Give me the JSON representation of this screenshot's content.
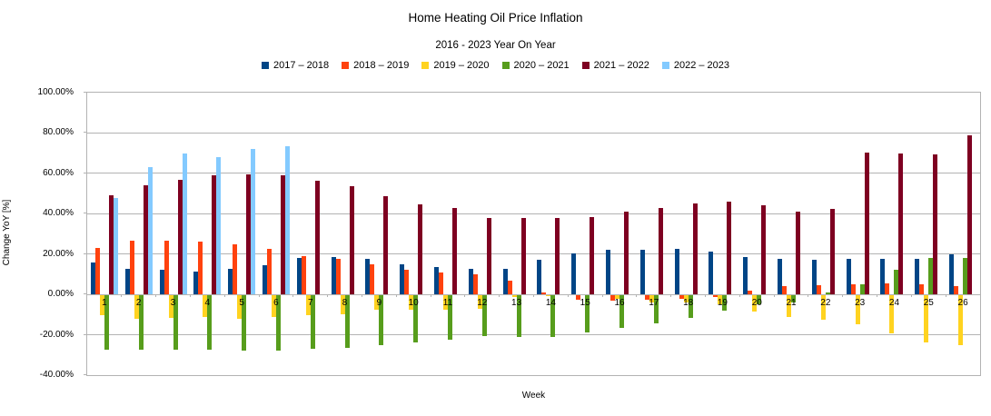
{
  "chart_data": {
    "type": "bar",
    "title": "Home Heating Oil Price Inflation",
    "subtitle": "2016 - 2023 Year On Year",
    "xlabel": "Week",
    "ylabel": "Change YoY [%]",
    "legend_position": "top",
    "grid": true,
    "ylim": [
      -40,
      100
    ],
    "ytick_step": 20,
    "ytick_format": "0.00%",
    "categories": [
      1,
      2,
      3,
      4,
      5,
      6,
      7,
      8,
      9,
      10,
      11,
      12,
      13,
      14,
      15,
      16,
      17,
      18,
      19,
      20,
      21,
      22,
      23,
      24,
      25,
      26
    ],
    "axis_color": "#b3b3b3",
    "series": [
      {
        "name": "2017 – 2018",
        "color": "#004586",
        "values": [
          16,
          12.5,
          12,
          11.5,
          12.5,
          14.5,
          18,
          18.5,
          17.5,
          15,
          13.5,
          12.5,
          12.5,
          17,
          20.5,
          22,
          22,
          22.5,
          21,
          18.5,
          17.5,
          17,
          17.5,
          17.5,
          17.5,
          20
        ]
      },
      {
        "name": "2018 – 2019",
        "color": "#ff420e",
        "values": [
          23,
          26.5,
          26.5,
          26,
          25,
          22.5,
          19,
          17.5,
          15,
          12,
          11,
          10,
          7,
          1,
          -2.5,
          -3,
          -2.5,
          -2,
          -1.5,
          2,
          4,
          4.5,
          5,
          5.5,
          5,
          4
        ]
      },
      {
        "name": "2019 – 2020",
        "color": "#ffd320",
        "values": [
          -10.5,
          -12,
          -11.5,
          -11,
          -12,
          -11,
          -10.5,
          -10,
          -7.5,
          -7.5,
          -7.5,
          -7,
          -1.5,
          -1,
          -0.5,
          -2,
          -4,
          -4,
          -5,
          -8.5,
          -11,
          -12.5,
          -15,
          -19.5,
          -24,
          -25
        ]
      },
      {
        "name": "2020 – 2021",
        "color": "#579d1c",
        "values": [
          -27.5,
          -27.5,
          -27.5,
          -27.5,
          -28,
          -28,
          -27,
          -26.5,
          -25,
          -24,
          -22.5,
          -20.5,
          -21,
          -21,
          -19,
          -16.5,
          -14.5,
          -11.5,
          -8,
          -5,
          -4,
          1,
          5,
          12,
          18,
          18
        ]
      },
      {
        "name": "2021 – 2022",
        "color": "#7e0021",
        "values": [
          49,
          54,
          57,
          59,
          59.5,
          59,
          56.5,
          53.5,
          48.5,
          44.5,
          43,
          38,
          38,
          38,
          38.5,
          41,
          43,
          45,
          46,
          44,
          41,
          42.5,
          70.5,
          70,
          69.5,
          79
        ]
      },
      {
        "name": "2022 – 2023",
        "color": "#83caff",
        "values": [
          48,
          63,
          70,
          68,
          72,
          73.5,
          null,
          null,
          null,
          null,
          null,
          null,
          null,
          null,
          null,
          null,
          null,
          null,
          null,
          null,
          null,
          null,
          null,
          null,
          null,
          null
        ]
      }
    ]
  }
}
